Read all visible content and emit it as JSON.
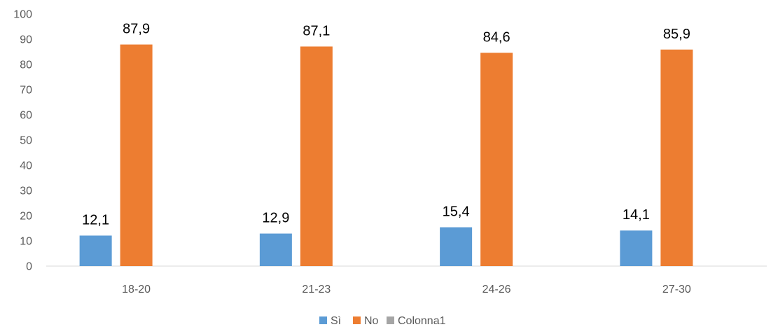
{
  "chart_data": {
    "type": "bar",
    "categories": [
      "18-20",
      "21-23",
      "24-26",
      "27-30"
    ],
    "series": [
      {
        "name": "Sì",
        "color": "#5B9BD5",
        "values": [
          12.1,
          12.9,
          15.4,
          14.1
        ],
        "labels": [
          "12,1",
          "12,9",
          "15,4",
          "14,1"
        ]
      },
      {
        "name": "No",
        "color": "#ED7D31",
        "values": [
          87.9,
          87.1,
          84.6,
          85.9
        ],
        "labels": [
          "87,9",
          "87,1",
          "84,6",
          "85,9"
        ]
      },
      {
        "name": "Colonna1",
        "color": "#A5A5A5",
        "values": [
          null,
          null,
          null,
          null
        ],
        "labels": [
          "",
          "",
          "",
          ""
        ]
      }
    ],
    "ylim": [
      0,
      100
    ],
    "yticks": [
      0,
      10,
      20,
      30,
      40,
      50,
      60,
      70,
      80,
      90,
      100
    ],
    "grid": false,
    "legend_position": "bottom"
  }
}
